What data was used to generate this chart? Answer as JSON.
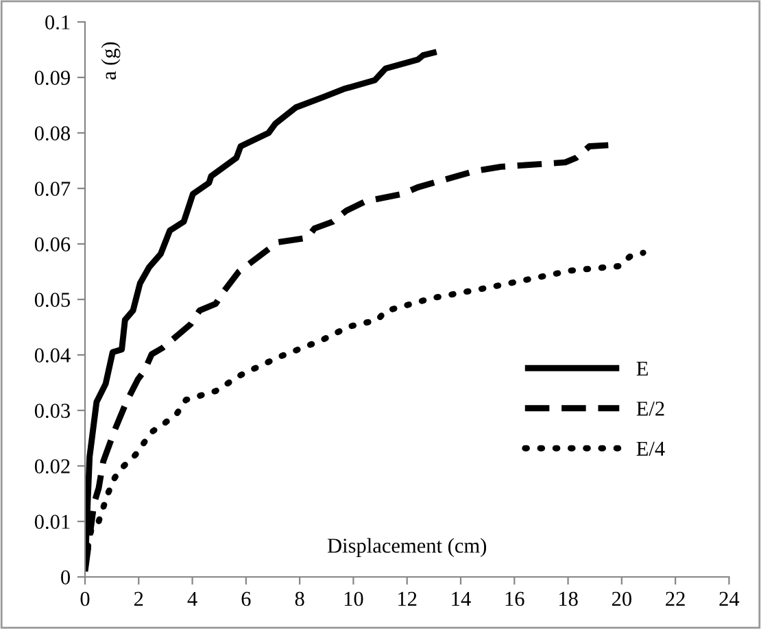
{
  "chart_data": {
    "type": "line",
    "xlabel": "Displacement (cm)",
    "ylabel": "a (g)",
    "xlim": [
      0,
      24
    ],
    "xticks": [
      0,
      2,
      4,
      6,
      8,
      10,
      12,
      14,
      16,
      18,
      20,
      22,
      24
    ],
    "ylim": [
      0,
      0.1
    ],
    "yticks": [
      0,
      0.01,
      0.02,
      0.03,
      0.04,
      0.05,
      0.06,
      0.07,
      0.08,
      0.09,
      0.1
    ],
    "grid": false,
    "legend": "right",
    "marker": "none",
    "series": [
      {
        "name": "E",
        "color": "#000000",
        "line_style": "solid",
        "x": [
          0,
          0.17,
          0.43,
          0.77,
          1.03,
          1.37,
          1.49,
          1.79,
          2.05,
          2.39,
          2.82,
          3.16,
          3.68,
          4.02,
          4.62,
          4.7,
          5.64,
          5.8,
          6.84,
          7.1,
          7.86,
          8.9,
          9.63,
          10.8,
          11.2,
          12.4,
          12.6,
          13.1
        ],
        "values": [
          0.002,
          0.0216,
          0.0315,
          0.0348,
          0.0405,
          0.041,
          0.0463,
          0.048,
          0.0529,
          0.0558,
          0.0582,
          0.0624,
          0.064,
          0.069,
          0.071,
          0.0722,
          0.0755,
          0.0776,
          0.08,
          0.0817,
          0.0846,
          0.0865,
          0.0879,
          0.0895,
          0.0916,
          0.0932,
          0.094,
          0.0946
        ]
      },
      {
        "name": "E/2",
        "color": "#000000",
        "line_style": "dashed",
        "x": [
          0,
          0.34,
          0.51,
          0.68,
          1.11,
          1.54,
          1.97,
          2.22,
          2.48,
          2.9,
          3.93,
          4.27,
          4.87,
          5.13,
          5.73,
          7.18,
          8.29,
          8.55,
          9.23,
          9.74,
          10.47,
          11.83,
          12.4,
          14.5,
          15.5,
          17.9,
          18.3,
          18.8,
          19.5
        ],
        "values": [
          0.001,
          0.0133,
          0.016,
          0.0208,
          0.0265,
          0.0315,
          0.0356,
          0.0372,
          0.0401,
          0.0413,
          0.0455,
          0.048,
          0.0492,
          0.0512,
          0.055,
          0.0603,
          0.0611,
          0.0628,
          0.064,
          0.066,
          0.0677,
          0.069,
          0.0702,
          0.0731,
          0.0739,
          0.0747,
          0.0755,
          0.0776,
          0.0778
        ]
      },
      {
        "name": "E/4",
        "color": "#000000",
        "line_style": "dotted",
        "x": [
          0,
          0.26,
          0.51,
          0.85,
          1.11,
          1.45,
          1.88,
          2.48,
          2.99,
          3.42,
          3.76,
          4.87,
          5.81,
          7.26,
          8.8,
          9.83,
          10.9,
          11.2,
          12.9,
          15.2,
          18.1,
          19.9,
          20.3,
          20.8
        ],
        "values": [
          0.0026,
          0.0092,
          0.01,
          0.015,
          0.0179,
          0.02,
          0.022,
          0.0261,
          0.0278,
          0.0294,
          0.0319,
          0.0335,
          0.0364,
          0.0397,
          0.0426,
          0.0451,
          0.0463,
          0.0479,
          0.0502,
          0.0523,
          0.0552,
          0.056,
          0.0577,
          0.0584
        ]
      }
    ]
  }
}
